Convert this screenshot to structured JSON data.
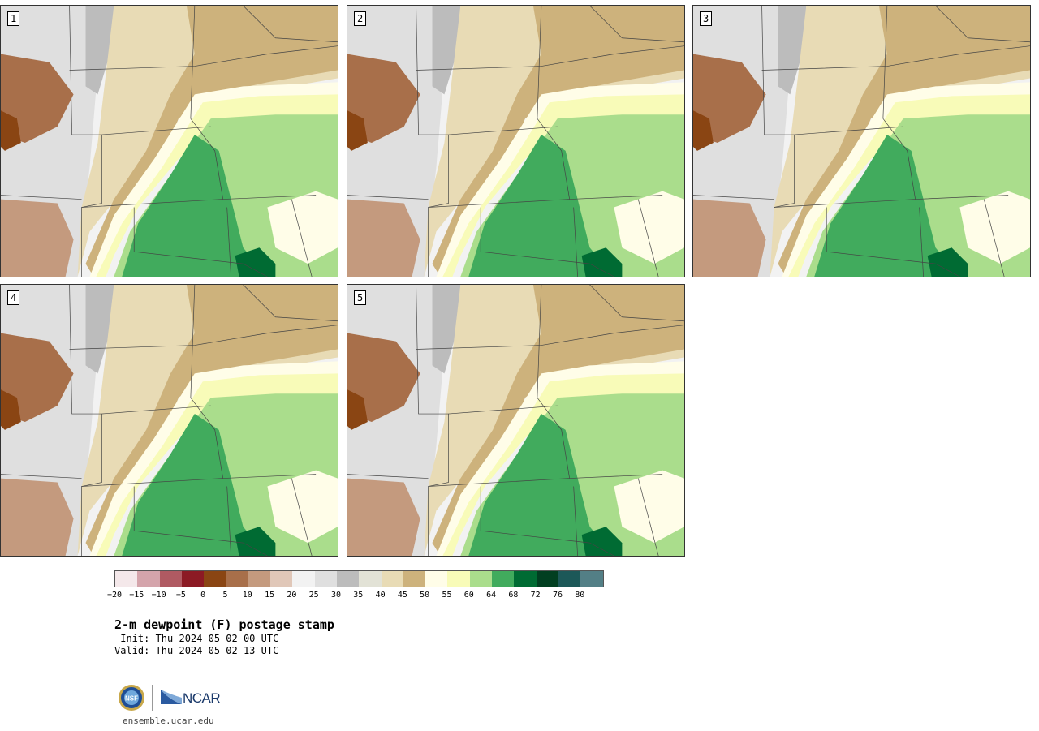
{
  "panels": [
    {
      "number": "1"
    },
    {
      "number": "2"
    },
    {
      "number": "3"
    },
    {
      "number": "4"
    },
    {
      "number": "5"
    }
  ],
  "colorbar": {
    "colors": [
      "#f4e8ea",
      "#d4a4ab",
      "#b05a62",
      "#8c1a24",
      "#8a4513",
      "#a86f4a",
      "#c49a7e",
      "#e0c7b8",
      "#f2f2f2",
      "#dfdfdf",
      "#bcbcbc",
      "#e2e2d6",
      "#e8dbb5",
      "#cdb27c",
      "#fffde8",
      "#f8fbb8",
      "#aadd8c",
      "#41ab5d",
      "#006b33",
      "#013f21",
      "#1c5858",
      "#537f86"
    ],
    "tick_labels": [
      "−20",
      "−15",
      "−10",
      "−5",
      "0",
      "5",
      "10",
      "15",
      "20",
      "25",
      "30",
      "35",
      "40",
      "45",
      "50",
      "55",
      "60",
      "64",
      "68",
      "72",
      "76",
      "80"
    ]
  },
  "title": "2-m dewpoint (F) postage stamp",
  "init_line": " Init: Thu 2024-05-02 00 UTC",
  "valid_line": "Valid: Thu 2024-05-02 13 UTC",
  "logos": {
    "nsf_text": "NSF",
    "ncar_text": "NCAR"
  },
  "url": "ensemble.ucar.edu"
}
